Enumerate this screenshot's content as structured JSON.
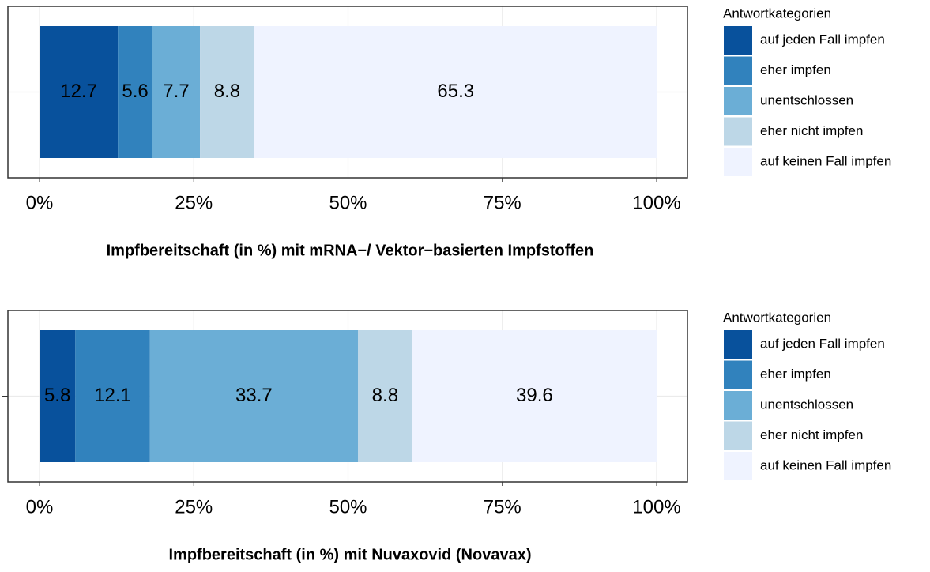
{
  "chart_data": [
    {
      "type": "bar",
      "orientation": "horizontal",
      "stacked": true,
      "xlabel": "Impfbereitschaft (in %) mit mRNA−/ Vektor−basierten Impfstoffen",
      "categories": [
        null
      ],
      "series": [
        {
          "name": "auf jeden Fall impfen",
          "color": "#08519c",
          "values": [
            12.7
          ]
        },
        {
          "name": "eher impfen",
          "color": "#3182bd",
          "values": [
            5.6
          ]
        },
        {
          "name": "unentschlossen",
          "color": "#6baed6",
          "values": [
            7.7
          ]
        },
        {
          "name": "eher nicht impfen",
          "color": "#bdd7e7",
          "values": [
            8.8
          ]
        },
        {
          "name": "auf keinen Fall impfen",
          "color": "#eff3ff",
          "values": [
            65.3
          ]
        }
      ],
      "xlim": [
        0,
        100
      ],
      "xticks": [
        {
          "value": 0,
          "label": "0%"
        },
        {
          "value": 25,
          "label": "25%"
        },
        {
          "value": 50,
          "label": "50%"
        },
        {
          "value": 75,
          "label": "75%"
        },
        {
          "value": 100,
          "label": "100%"
        }
      ],
      "grid": true,
      "legend_title": "Antwortkategorien",
      "legend": "right"
    },
    {
      "type": "bar",
      "orientation": "horizontal",
      "stacked": true,
      "xlabel": "Impfbereitschaft (in %) mit Nuvaxovid (Novavax)",
      "categories": [
        null
      ],
      "series": [
        {
          "name": "auf jeden Fall impfen",
          "color": "#08519c",
          "values": [
            5.8
          ]
        },
        {
          "name": "eher impfen",
          "color": "#3182bd",
          "values": [
            12.1
          ]
        },
        {
          "name": "unentschlossen",
          "color": "#6baed6",
          "values": [
            33.7
          ]
        },
        {
          "name": "eher nicht impfen",
          "color": "#bdd7e7",
          "values": [
            8.8
          ]
        },
        {
          "name": "auf keinen Fall impfen",
          "color": "#eff3ff",
          "values": [
            39.6
          ]
        }
      ],
      "xlim": [
        0,
        100
      ],
      "xticks": [
        {
          "value": 0,
          "label": "0%"
        },
        {
          "value": 25,
          "label": "25%"
        },
        {
          "value": 50,
          "label": "50%"
        },
        {
          "value": 75,
          "label": "75%"
        },
        {
          "value": 100,
          "label": "100%"
        }
      ],
      "grid": true,
      "legend_title": "Antwortkategorien",
      "legend": "right"
    }
  ]
}
